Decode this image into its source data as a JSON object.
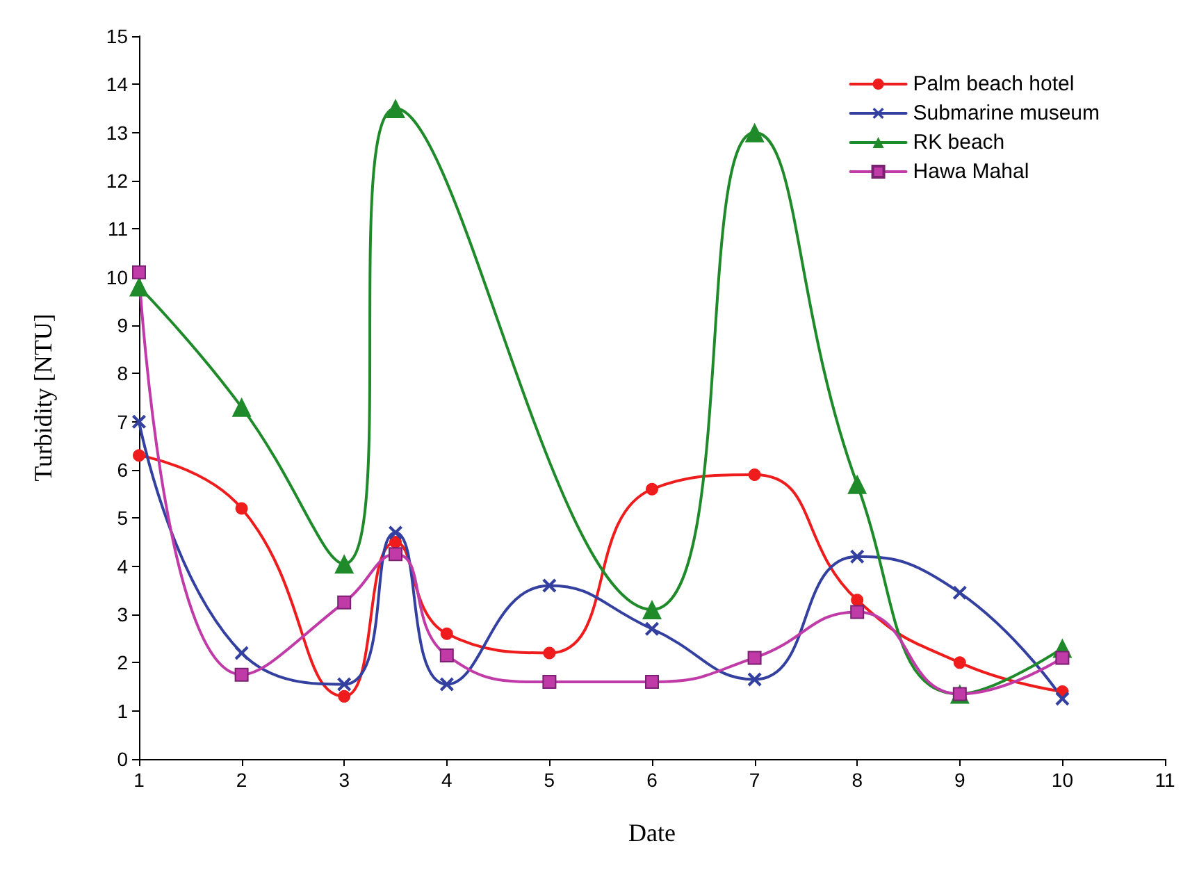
{
  "chart_data": {
    "type": "line",
    "xlabel": "Date",
    "ylabel": "Turbidity [NTU]",
    "x": [
      1,
      2,
      3,
      3.5,
      4,
      5,
      6,
      7,
      8,
      9,
      10
    ],
    "xlim": [
      1,
      11
    ],
    "xticks": [
      1,
      2,
      3,
      4,
      5,
      6,
      7,
      8,
      9,
      10,
      11
    ],
    "ylim": [
      0,
      15
    ],
    "yticks": [
      0,
      1,
      2,
      3,
      4,
      5,
      6,
      7,
      8,
      9,
      10,
      11,
      12,
      13,
      14,
      15
    ],
    "grid": false,
    "legend": "top right",
    "line_style": "solid",
    "series": [
      {
        "name": "Palm beach hotel",
        "color": "#ee1c1c",
        "marker": "circle",
        "values": [
          6.3,
          5.2,
          1.3,
          4.5,
          2.6,
          2.2,
          5.6,
          5.9,
          3.3,
          2.0,
          1.4
        ]
      },
      {
        "name": "Submarine museum",
        "color": "#3340a0",
        "marker": "cross",
        "values": [
          7.0,
          2.2,
          1.55,
          4.7,
          1.55,
          3.6,
          2.7,
          1.65,
          4.2,
          3.45,
          1.25
        ]
      },
      {
        "name": "RK beach",
        "color": "#1f8a2a",
        "marker": "triangle",
        "x": [
          1,
          2,
          3,
          3.5,
          6,
          7,
          8,
          9,
          10
        ],
        "values": [
          9.8,
          7.3,
          4.05,
          13.5,
          3.1,
          13.0,
          5.7,
          1.35,
          2.3
        ]
      },
      {
        "name": "Hawa Mahal",
        "color": "#c03aa8",
        "marker": "square",
        "values": [
          10.1,
          1.75,
          3.25,
          4.25,
          2.15,
          1.6,
          1.6,
          2.1,
          3.05,
          1.35,
          2.1
        ]
      }
    ]
  }
}
